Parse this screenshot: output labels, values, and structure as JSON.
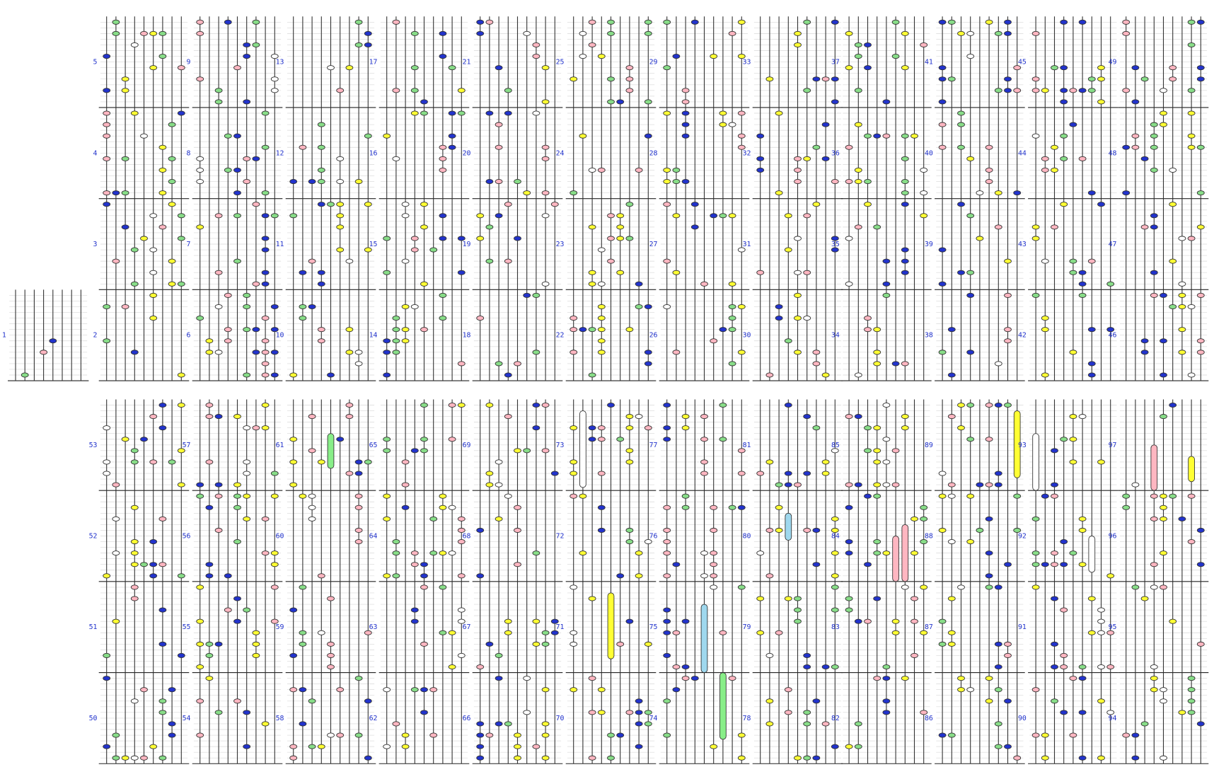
{
  "measures": [
    "1",
    "2",
    "3",
    "4",
    "5",
    "6",
    "7",
    "8",
    "9",
    "10",
    "11",
    "12",
    "13",
    "14",
    "15",
    "16",
    "17",
    "18",
    "19",
    "20",
    "21",
    "22",
    "23",
    "24",
    "25",
    "26",
    "27",
    "28",
    "29",
    "30",
    "31",
    "32",
    "33",
    "34",
    "35",
    "36",
    "37",
    "38",
    "39",
    "40",
    "41",
    "42",
    "43",
    "44",
    "45",
    "46",
    "47",
    "48",
    "49",
    "50",
    "51",
    "52",
    "53",
    "54",
    "55",
    "56",
    "57",
    "58",
    "59",
    "60",
    "61",
    "62",
    "63",
    "64",
    "65",
    "66",
    "67",
    "68",
    "69",
    "70",
    "71",
    "72",
    "73",
    "74",
    "75",
    "76",
    "77",
    "78",
    "79",
    "80",
    "81",
    "82",
    "83",
    "84",
    "85",
    "86",
    "87",
    "88",
    "89",
    "90",
    "91",
    "92",
    "93",
    "94",
    "95",
    "96",
    "97"
  ]
}
